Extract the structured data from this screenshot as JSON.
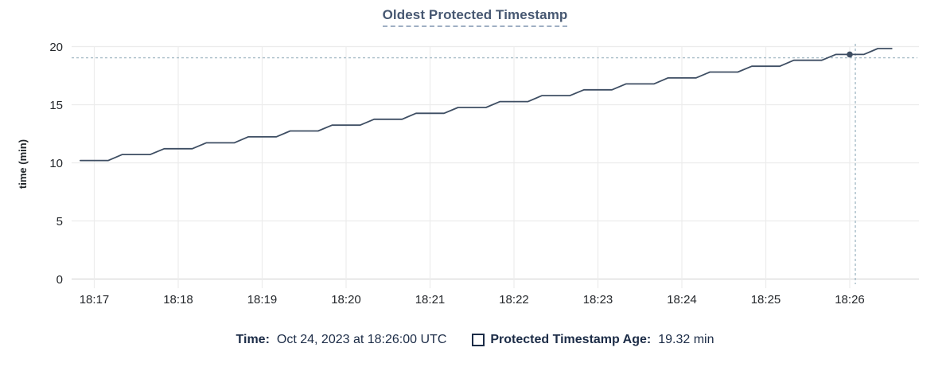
{
  "title": "Oldest Protected Timestamp",
  "chart_data": {
    "type": "line",
    "title": "Oldest Protected Timestamp",
    "xlabel": "",
    "ylabel": "time (min)",
    "ylim": [
      0,
      20
    ],
    "y_ticks": [
      0,
      5,
      10,
      15,
      20
    ],
    "x_ticks": [
      "18:17",
      "18:18",
      "18:19",
      "18:20",
      "18:21",
      "18:22",
      "18:23",
      "18:24",
      "18:25",
      "18:26"
    ],
    "grid": true,
    "legend_position": "bottom",
    "series": [
      {
        "name": "Protected Timestamp Age",
        "unit": "min",
        "start_time": "18:16:50",
        "interval_seconds": 10,
        "values": [
          10.2,
          10.2,
          10.2,
          10.71,
          10.71,
          10.71,
          11.21,
          11.21,
          11.21,
          11.72,
          11.72,
          11.72,
          12.23,
          12.23,
          12.23,
          12.74,
          12.74,
          12.74,
          13.24,
          13.24,
          13.24,
          13.75,
          13.75,
          13.75,
          14.26,
          14.26,
          14.26,
          14.76,
          14.76,
          14.76,
          15.27,
          15.27,
          15.27,
          15.78,
          15.78,
          15.78,
          16.28,
          16.28,
          16.28,
          16.79,
          16.79,
          16.79,
          17.3,
          17.3,
          17.3,
          17.81,
          17.81,
          17.81,
          18.31,
          18.31,
          18.31,
          18.82,
          18.82,
          18.82,
          19.32,
          19.32,
          19.32,
          19.83,
          19.83
        ]
      }
    ],
    "hover_point": {
      "time": "18:26:00",
      "value": 19.32
    },
    "crosshair": {
      "time": "18:26:04",
      "value": 19.04
    },
    "colors": {
      "line": "#3e4e63",
      "grid": "#ececec",
      "axis": "#d9d9d9",
      "crosshair": "#a7bcc7",
      "tick_text": "#24272b",
      "title": "#475872",
      "footer_text": "#1c2c47"
    }
  },
  "footer": {
    "time_label": "Time:",
    "time_value": "Oct 24, 2023 at 18:26:00 UTC",
    "series_label": "Protected Timestamp Age:",
    "series_value": "19.32 min"
  }
}
